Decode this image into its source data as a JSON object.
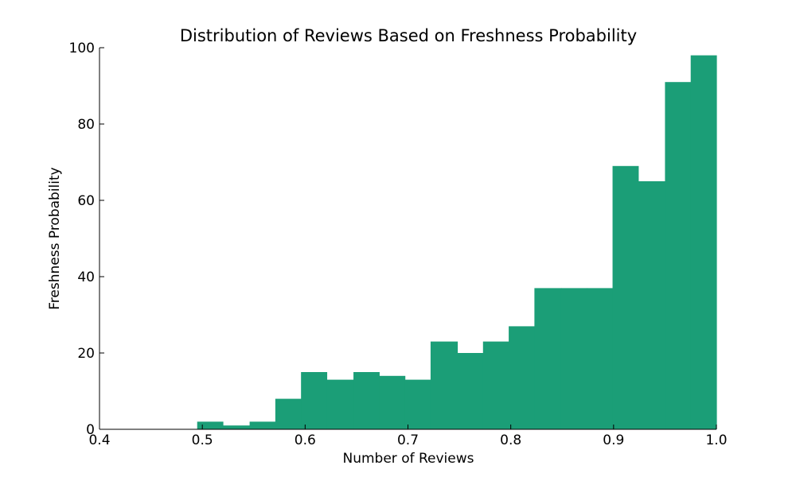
{
  "chart_data": {
    "type": "bar",
    "title": "Distribution of Reviews Based on Freshness Probability",
    "xlabel": "Number of Reviews",
    "ylabel": "Freshness Probability",
    "xlim": [
      0.4,
      1.0
    ],
    "ylim": [
      0,
      100
    ],
    "xticks": [
      0.4,
      0.5,
      0.6,
      0.7,
      0.8,
      0.9,
      1.0
    ],
    "xtick_labels": [
      "0.4",
      "0.5",
      "0.6",
      "0.7",
      "0.8",
      "0.9",
      "1.0"
    ],
    "yticks": [
      0,
      20,
      40,
      60,
      80,
      100
    ],
    "ytick_labels": [
      "0",
      "20",
      "40",
      "60",
      "80",
      "100"
    ],
    "grid": false,
    "bar_color": "#1b9e77",
    "bins": [
      {
        "x0": 0.495,
        "x1": 0.52,
        "value": 2
      },
      {
        "x0": 0.52,
        "x1": 0.546,
        "value": 1
      },
      {
        "x0": 0.546,
        "x1": 0.571,
        "value": 2
      },
      {
        "x0": 0.571,
        "x1": 0.596,
        "value": 8
      },
      {
        "x0": 0.596,
        "x1": 0.621,
        "value": 15
      },
      {
        "x0": 0.621,
        "x1": 0.647,
        "value": 13
      },
      {
        "x0": 0.647,
        "x1": 0.672,
        "value": 15
      },
      {
        "x0": 0.672,
        "x1": 0.697,
        "value": 14
      },
      {
        "x0": 0.697,
        "x1": 0.722,
        "value": 13
      },
      {
        "x0": 0.722,
        "x1": 0.748,
        "value": 23
      },
      {
        "x0": 0.748,
        "x1": 0.773,
        "value": 20
      },
      {
        "x0": 0.773,
        "x1": 0.798,
        "value": 23
      },
      {
        "x0": 0.798,
        "x1": 0.823,
        "value": 27
      },
      {
        "x0": 0.823,
        "x1": 0.849,
        "value": 37
      },
      {
        "x0": 0.849,
        "x1": 0.874,
        "value": 37
      },
      {
        "x0": 0.874,
        "x1": 0.899,
        "value": 37
      },
      {
        "x0": 0.899,
        "x1": 0.924,
        "value": 69
      },
      {
        "x0": 0.924,
        "x1": 0.95,
        "value": 65
      },
      {
        "x0": 0.95,
        "x1": 0.975,
        "value": 91
      },
      {
        "x0": 0.975,
        "x1": 1.0,
        "value": 98
      }
    ]
  }
}
